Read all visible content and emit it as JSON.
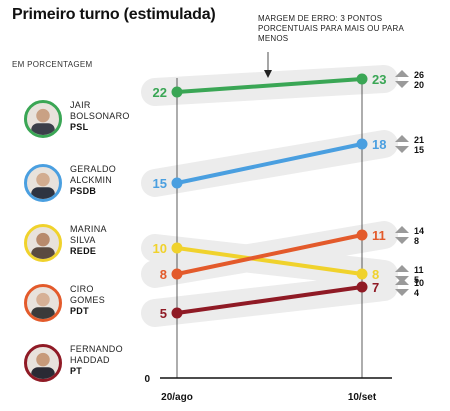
{
  "title": "Primeiro turno (estimulada)",
  "unit_note": "EM PORCENTAGEM",
  "margin_note": "MARGEM DE ERRO: 3 PONTOS PORCENTUAIS PARA MAIS OU PARA MENOS",
  "candidates": [
    {
      "name_line1": "JAIR",
      "name_line2": "BOLSONARO",
      "party": "PSL",
      "color": "#3aa655",
      "icon": "candidate-photo"
    },
    {
      "name_line1": "GERALDO",
      "name_line2": "ALCKMIN",
      "party": "PSDB",
      "color": "#4a9fe0",
      "icon": "candidate-photo"
    },
    {
      "name_line1": "MARINA",
      "name_line2": "SILVA",
      "party": "REDE",
      "color": "#f0d22c",
      "icon": "candidate-photo"
    },
    {
      "name_line1": "CIRO",
      "name_line2": "GOMES",
      "party": "PDT",
      "color": "#e35a2b",
      "icon": "candidate-photo"
    },
    {
      "name_line1": "FERNANDO",
      "name_line2": "HADDAD",
      "party": "PT",
      "color": "#8f1a25",
      "icon": "candidate-photo"
    }
  ],
  "chart_data": {
    "type": "line",
    "title": "Primeiro turno (estimulada)",
    "x": [
      "20/ago",
      "10/set"
    ],
    "y_baseline_label": "0",
    "series": [
      {
        "name": "JAIR BOLSONARO",
        "color": "#3aa655",
        "values": [
          22,
          23
        ],
        "margin_upper": 26,
        "margin_lower": 20
      },
      {
        "name": "GERALDO ALCKMIN",
        "color": "#4a9fe0",
        "values": [
          15,
          18
        ],
        "margin_upper": 21,
        "margin_lower": 15
      },
      {
        "name": "MARINA SILVA",
        "color": "#f0d22c",
        "values": [
          10,
          8
        ],
        "margin_upper": 11,
        "margin_lower": 5
      },
      {
        "name": "CIRO GOMES",
        "color": "#e35a2b",
        "values": [
          8,
          11
        ],
        "margin_upper": 14,
        "margin_lower": 8
      },
      {
        "name": "FERNANDO HADDAD",
        "color": "#8f1a25",
        "values": [
          5,
          7
        ],
        "margin_upper": 10,
        "margin_lower": 4
      }
    ]
  }
}
